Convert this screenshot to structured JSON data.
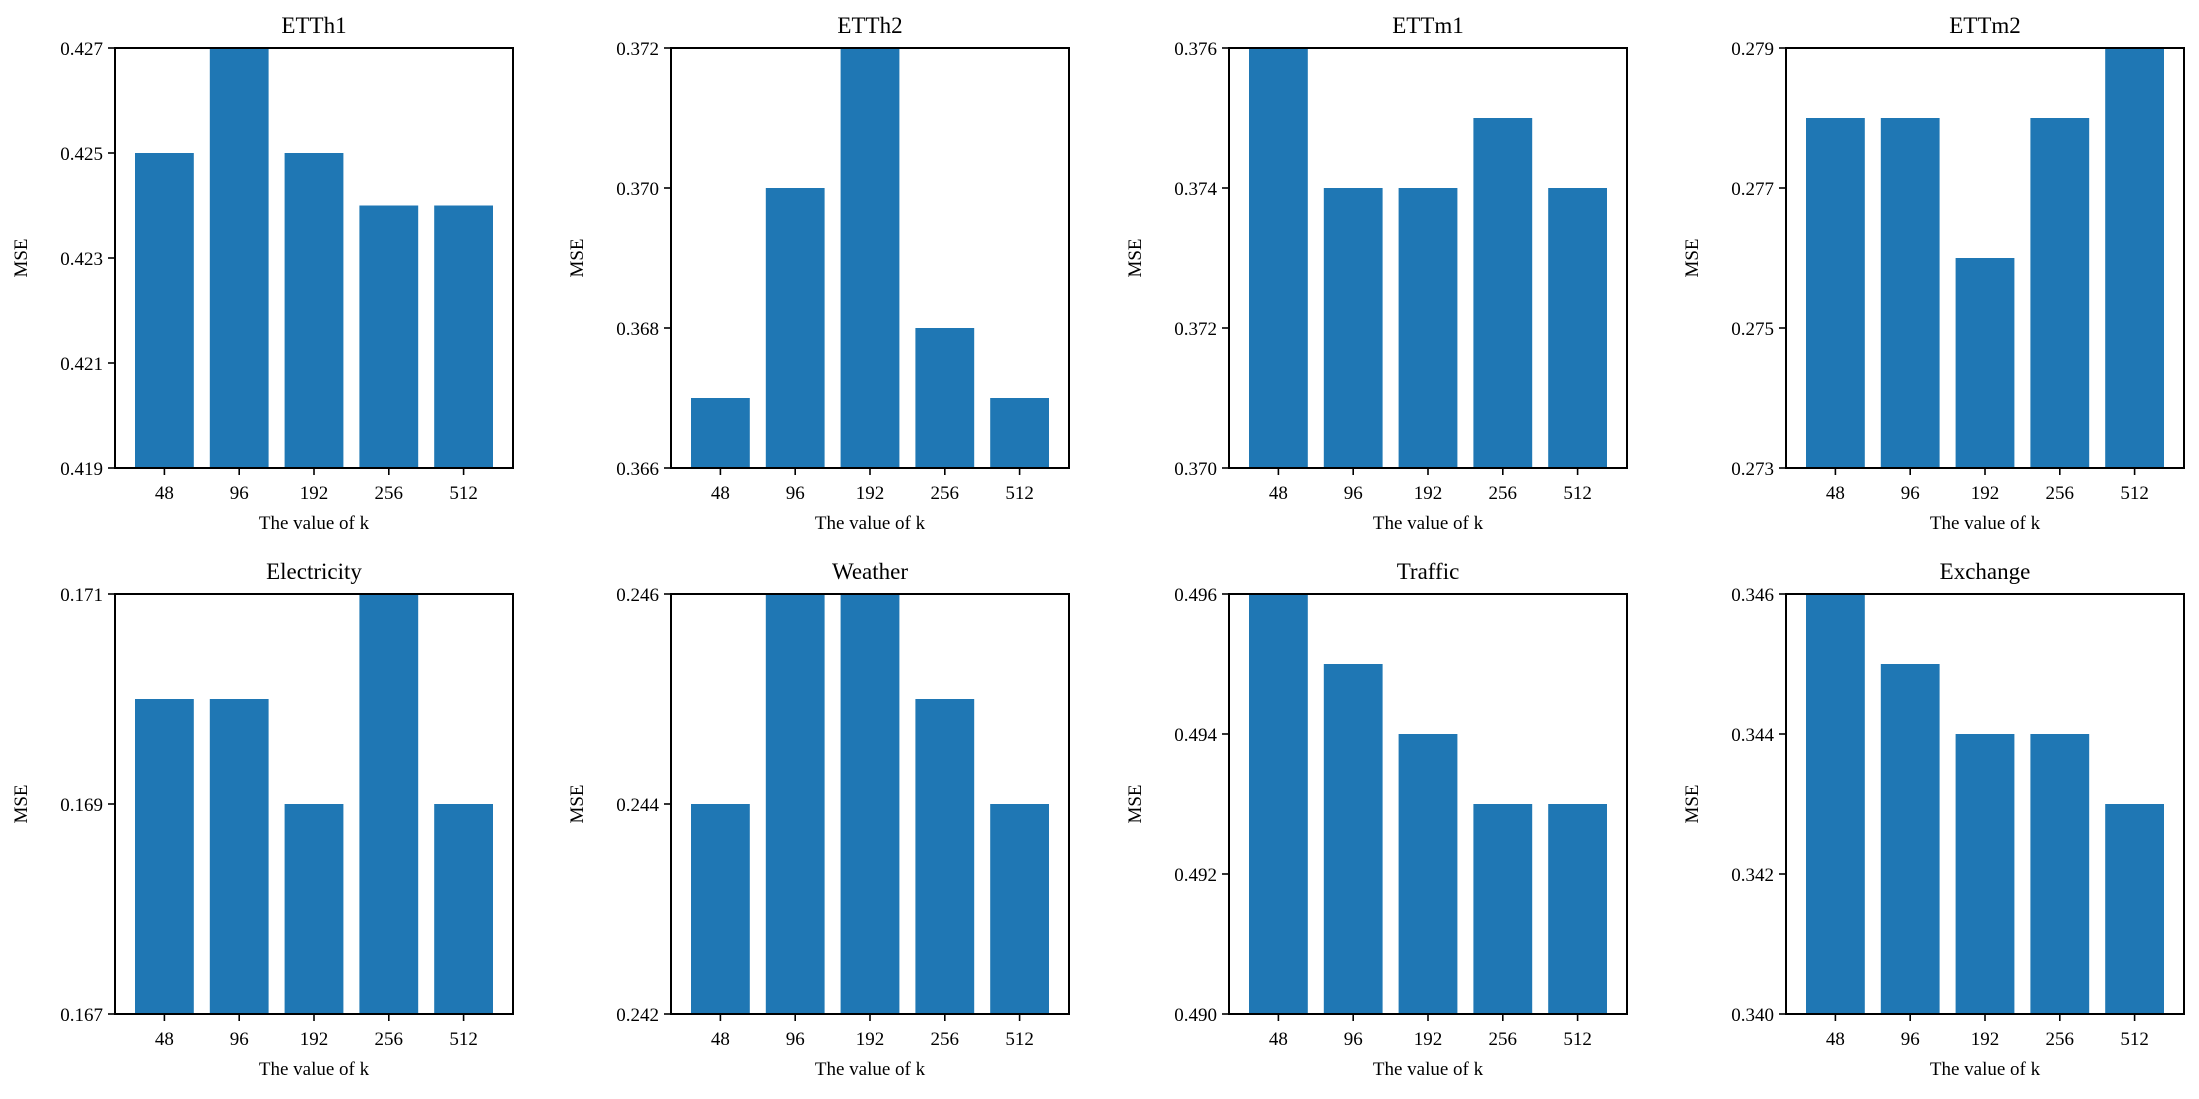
{
  "figure": {
    "bar_color": "#1f77b4",
    "background": "#ffffff"
  },
  "chart_data": [
    {
      "type": "bar",
      "title": "ETTh1",
      "categories": [
        "48",
        "96",
        "192",
        "256",
        "512"
      ],
      "values": [
        0.425,
        0.427,
        0.425,
        0.424,
        0.424
      ],
      "xlabel": "The value of k",
      "ylabel": "MSE",
      "ylim": [
        0.419,
        0.427
      ],
      "yticks": [
        "0.419",
        "0.421",
        "0.423",
        "0.425",
        "0.427"
      ],
      "grid": false
    },
    {
      "type": "bar",
      "title": "ETTh2",
      "categories": [
        "48",
        "96",
        "192",
        "256",
        "512"
      ],
      "values": [
        0.367,
        0.37,
        0.372,
        0.368,
        0.367
      ],
      "xlabel": "The value of k",
      "ylabel": "MSE",
      "ylim": [
        0.366,
        0.372
      ],
      "yticks": [
        "0.366",
        "0.368",
        "0.370",
        "0.372"
      ],
      "grid": false
    },
    {
      "type": "bar",
      "title": "ETTm1",
      "categories": [
        "48",
        "96",
        "192",
        "256",
        "512"
      ],
      "values": [
        0.376,
        0.374,
        0.374,
        0.375,
        0.374
      ],
      "xlabel": "The value of k",
      "ylabel": "MSE",
      "ylim": [
        0.37,
        0.376
      ],
      "yticks": [
        "0.370",
        "0.372",
        "0.374",
        "0.376"
      ],
      "grid": false
    },
    {
      "type": "bar",
      "title": "ETTm2",
      "categories": [
        "48",
        "96",
        "192",
        "256",
        "512"
      ],
      "values": [
        0.278,
        0.278,
        0.276,
        0.278,
        0.279
      ],
      "xlabel": "The value of k",
      "ylabel": "MSE",
      "ylim": [
        0.273,
        0.279
      ],
      "yticks": [
        "0.273",
        "0.275",
        "0.277",
        "0.279"
      ],
      "grid": false
    },
    {
      "type": "bar",
      "title": "Electricity",
      "categories": [
        "48",
        "96",
        "192",
        "256",
        "512"
      ],
      "values": [
        0.17,
        0.17,
        0.169,
        0.171,
        0.169
      ],
      "xlabel": "The value of k",
      "ylabel": "MSE",
      "ylim": [
        0.167,
        0.171
      ],
      "yticks": [
        "0.167",
        "0.169",
        "0.171"
      ],
      "grid": false
    },
    {
      "type": "bar",
      "title": "Weather",
      "categories": [
        "48",
        "96",
        "192",
        "256",
        "512"
      ],
      "values": [
        0.244,
        0.246,
        0.246,
        0.245,
        0.244
      ],
      "xlabel": "The value of k",
      "ylabel": "MSE",
      "ylim": [
        0.242,
        0.246
      ],
      "yticks": [
        "0.242",
        "0.244",
        "0.246"
      ],
      "grid": false
    },
    {
      "type": "bar",
      "title": "Traffic",
      "categories": [
        "48",
        "96",
        "192",
        "256",
        "512"
      ],
      "values": [
        0.496,
        0.495,
        0.494,
        0.493,
        0.493
      ],
      "xlabel": "The value of k",
      "ylabel": "MSE",
      "ylim": [
        0.49,
        0.496
      ],
      "yticks": [
        "0.490",
        "0.492",
        "0.494",
        "0.496"
      ],
      "grid": false
    },
    {
      "type": "bar",
      "title": "Exchange",
      "categories": [
        "48",
        "96",
        "192",
        "256",
        "512"
      ],
      "values": [
        0.346,
        0.345,
        0.344,
        0.344,
        0.343
      ],
      "xlabel": "The value of k",
      "ylabel": "MSE",
      "ylim": [
        0.34,
        0.346
      ],
      "yticks": [
        "0.340",
        "0.342",
        "0.344",
        "0.346"
      ],
      "grid": false
    }
  ]
}
